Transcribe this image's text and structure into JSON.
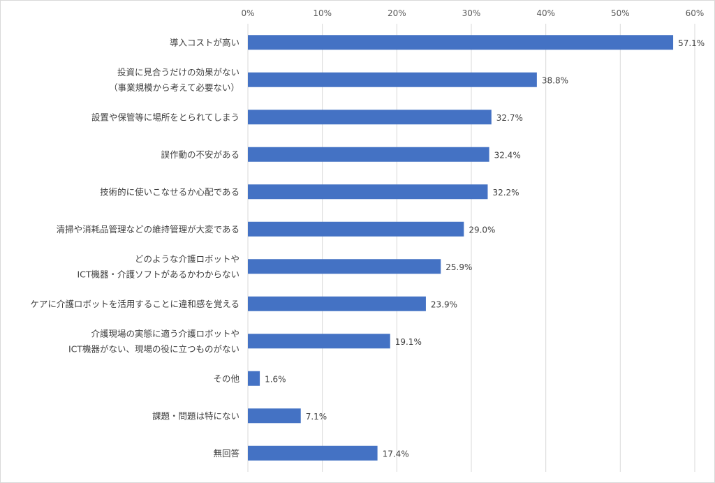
{
  "chart_data": {
    "type": "bar",
    "orientation": "horizontal",
    "categories": [
      [
        "導入コストが高い"
      ],
      [
        "投資に見合うだけの効果がない",
        "（事業規模から考えて必要ない）"
      ],
      [
        "設置や保管等に場所をとられてしまう"
      ],
      [
        "誤作動の不安がある"
      ],
      [
        "技術的に使いこなせるか心配である"
      ],
      [
        "清掃や消耗品管理などの維持管理が大変である"
      ],
      [
        "どのような介護ロボットや",
        "ICT機器・介護ソフトがあるかわからない"
      ],
      [
        "ケアに介護ロボットを活用することに違和感を覚える"
      ],
      [
        "介護現場の実態に適う介護ロボットや",
        "ICT機器がない、現場の役に立つものがない"
      ],
      [
        "その他"
      ],
      [
        "課題・問題は特にない"
      ],
      [
        "無回答"
      ]
    ],
    "values": [
      57.1,
      38.8,
      32.7,
      32.4,
      32.2,
      29.0,
      25.9,
      23.9,
      19.1,
      1.6,
      7.1,
      17.4
    ],
    "value_labels": [
      "57.1%",
      "38.8%",
      "32.7%",
      "32.4%",
      "32.2%",
      "29.0%",
      "25.9%",
      "23.9%",
      "19.1%",
      "1.6%",
      "7.1%",
      "17.4%"
    ],
    "xticks": [
      0,
      10,
      20,
      30,
      40,
      50,
      60
    ],
    "xtick_labels": [
      "0%",
      "10%",
      "20%",
      "30%",
      "40%",
      "50%",
      "60%"
    ],
    "xlim": [
      0,
      60
    ],
    "axis_position": "top",
    "grid": true,
    "bar_color": "#4472c4",
    "grid_color": "#d9d9d9"
  }
}
